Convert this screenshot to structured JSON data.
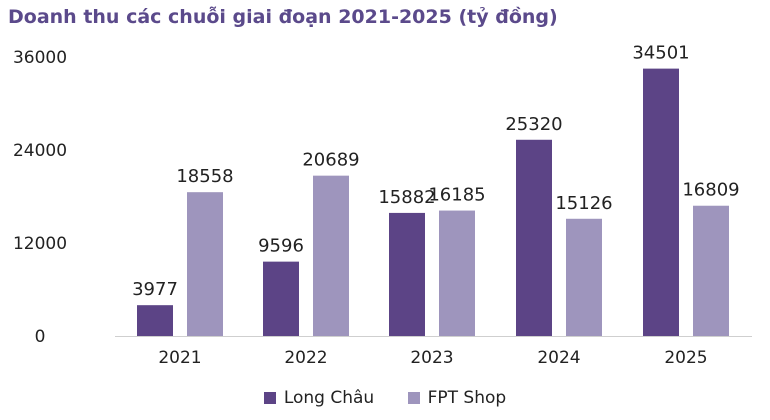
{
  "chart_data": {
    "type": "bar",
    "title": "Doanh thu các chuỗi giai đoạn 2021-2025 (tỷ đồng)",
    "categories": [
      "2021",
      "2022",
      "2023",
      "2024",
      "2025"
    ],
    "series": [
      {
        "name": "Long Châu",
        "color": "#5c4486",
        "values": [
          3977,
          9596,
          15882,
          25320,
          34501
        ]
      },
      {
        "name": "FPT Shop",
        "color": "#9e95bd",
        "values": [
          18558,
          20689,
          16185,
          15126,
          16809
        ]
      }
    ],
    "yticks": [
      "0",
      "12000",
      "24000",
      "36000"
    ],
    "ylim": [
      0,
      36000
    ],
    "xlabel": "",
    "ylabel": "",
    "grid": false,
    "legend_position": "bottom"
  }
}
